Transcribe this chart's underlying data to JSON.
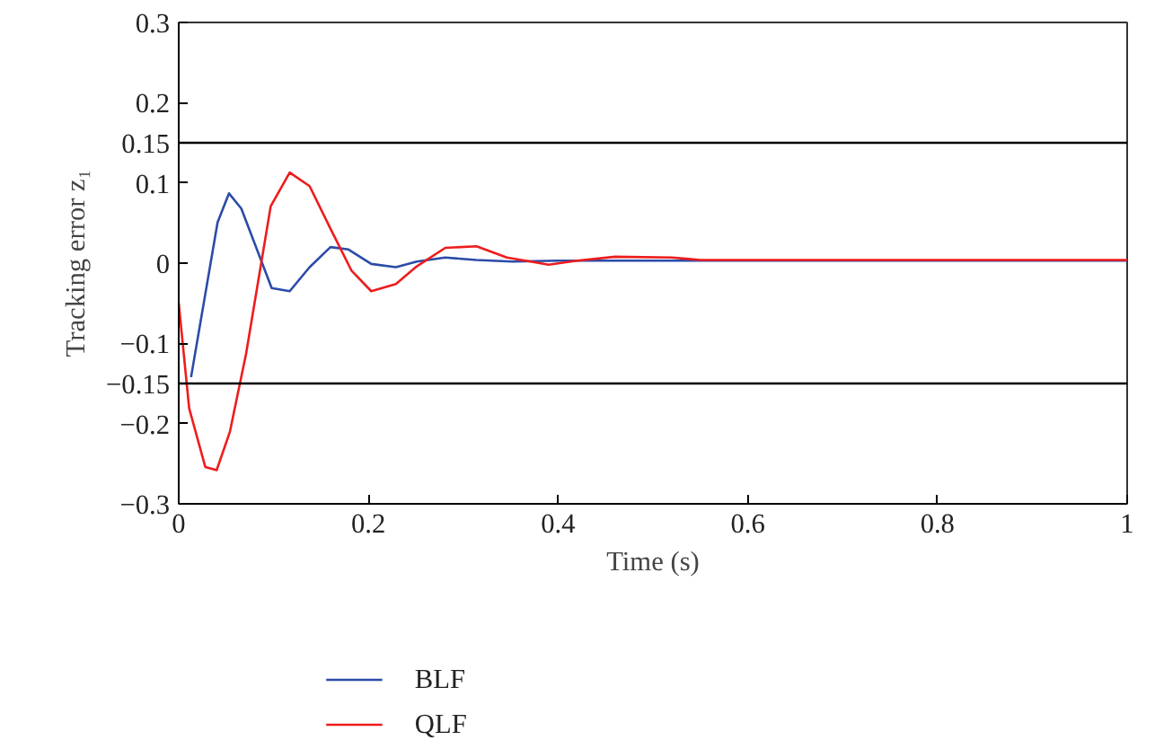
{
  "chart_data": {
    "type": "line",
    "xlabel": "Time (s)",
    "ylabel": "Tracking error z₁",
    "xlim": [
      0,
      1
    ],
    "ylim": [
      -0.3,
      0.3
    ],
    "xticks": [
      0,
      0.2,
      0.4,
      0.6,
      0.8,
      1
    ],
    "yticks": [
      -0.3,
      -0.2,
      -0.15,
      -0.1,
      0,
      0.1,
      0.15,
      0.2,
      0.3
    ],
    "grid": false,
    "legend": "bottom left",
    "line_style": "solid",
    "marker": "none",
    "ref_lines": [
      {
        "axis": "y",
        "value": 0.15,
        "color": "#000000"
      },
      {
        "axis": "y",
        "value": -0.15,
        "color": "#000000"
      }
    ],
    "series": [
      {
        "name": "BLF",
        "color": "#2b4ba8",
        "x": [
          0.013,
          0.041,
          0.053,
          0.066,
          0.098,
          0.117,
          0.138,
          0.16,
          0.179,
          0.203,
          0.229,
          0.251,
          0.281,
          0.314,
          0.352,
          0.4,
          0.5,
          0.6,
          0.8,
          1
        ],
        "values": [
          -0.142,
          0.051,
          0.087,
          0.068,
          -0.031,
          -0.035,
          -0.005,
          0.02,
          0.017,
          -0.001,
          -0.005,
          0.002,
          0.007,
          0.004,
          0.002,
          0.003,
          0.003,
          0.003,
          0.003,
          0.003
        ]
      },
      {
        "name": "QLF",
        "color": "#ee1c1c",
        "x": [
          0,
          0.011,
          0.028,
          0.04,
          0.054,
          0.071,
          0.097,
          0.117,
          0.138,
          0.16,
          0.182,
          0.203,
          0.229,
          0.251,
          0.281,
          0.314,
          0.346,
          0.371,
          0.39,
          0.42,
          0.46,
          0.52,
          0.55,
          0.7,
          1
        ],
        "values": [
          -0.05,
          -0.181,
          -0.254,
          -0.258,
          -0.21,
          -0.113,
          0.071,
          0.113,
          0.096,
          0.043,
          -0.009,
          -0.035,
          -0.026,
          -0.004,
          0.019,
          0.021,
          0.007,
          0.002,
          -0.002,
          0.003,
          0.008,
          0.007,
          0.004,
          0.004,
          0.004
        ]
      }
    ]
  }
}
